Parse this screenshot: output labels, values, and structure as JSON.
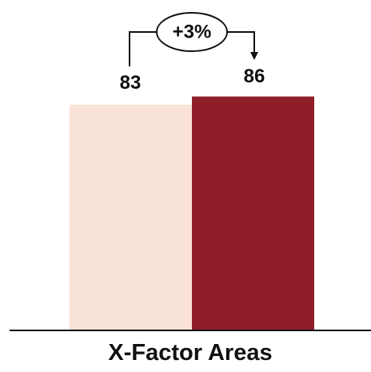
{
  "chart_data": {
    "type": "bar",
    "categories": [
      "X-Factor Areas"
    ],
    "series": [
      {
        "values": [
          83
        ],
        "color": "#F8E3D6"
      },
      {
        "values": [
          86
        ],
        "color": "#8F1E29"
      }
    ],
    "data_labels": [
      "83",
      "86"
    ],
    "change_annotation": "+3%",
    "ylim": [
      0,
      100
    ],
    "grid": false,
    "legend": "none"
  }
}
